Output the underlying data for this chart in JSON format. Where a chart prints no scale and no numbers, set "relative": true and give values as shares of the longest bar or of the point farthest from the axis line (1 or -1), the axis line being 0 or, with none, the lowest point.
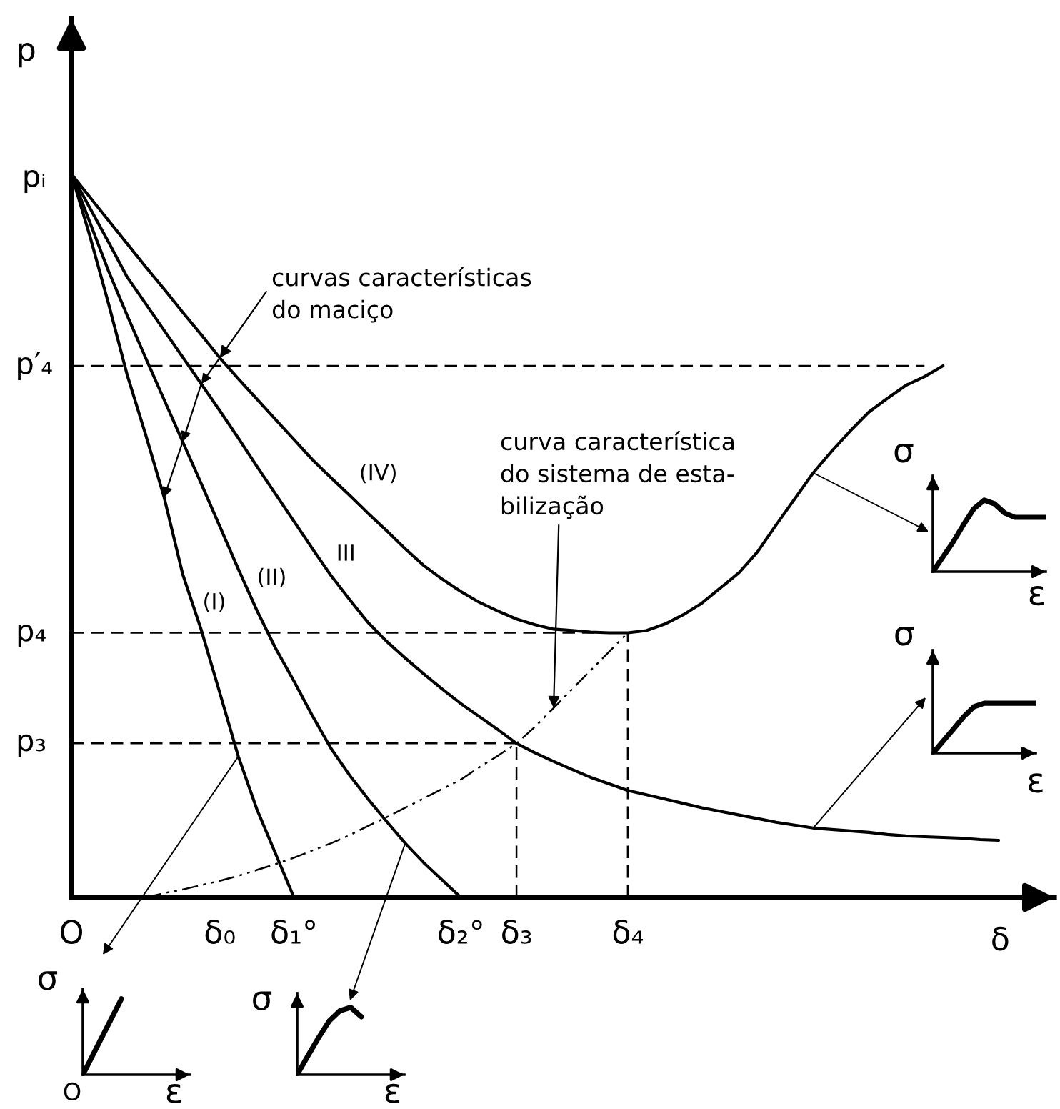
{
  "chart_data": [
    {
      "type": "line",
      "relative": true,
      "xlabel": "δ",
      "ylabel": "p",
      "categories": [
        "O",
        null,
        null,
        null,
        null,
        null,
        null,
        null,
        "δ₀",
        null,
        null,
        null,
        "δ₁°",
        null,
        null,
        null,
        null,
        null,
        null,
        null,
        null,
        "δ₂°",
        null,
        null,
        "δ₃",
        null,
        null,
        null,
        null,
        null,
        "δ₄",
        null,
        null,
        null,
        null,
        null,
        null,
        null,
        null,
        null,
        null,
        null,
        null,
        null,
        null,
        null,
        null,
        null,
        null,
        null,
        null
      ],
      "series": [
        {
          "name": "(I)",
          "color": "#000000",
          "values": [
            1,
            0.914,
            0.821,
            0.723,
            0.64,
            0.553,
            0.447,
            0.37,
            0.283,
            0.195,
            0.122,
            0.061,
            0,
            null,
            null,
            null,
            null,
            null,
            null,
            null,
            null,
            null,
            null,
            null,
            null,
            null,
            null,
            null,
            null,
            null,
            null,
            null,
            null,
            null,
            null,
            null,
            null,
            null,
            null,
            null,
            null,
            null,
            null,
            null,
            null,
            null,
            null,
            null,
            null,
            null,
            null
          ]
        },
        {
          "name": "(II)",
          "color": "#000000",
          "values": [
            1,
            0.933,
            0.866,
            0.805,
            0.746,
            0.688,
            0.63,
            0.572,
            0.513,
            0.454,
            0.397,
            0.345,
            0.299,
            0.251,
            0.206,
            0.169,
            0.136,
            0.105,
            0.075,
            0.048,
            0.024,
            0,
            null,
            null,
            null,
            null,
            null,
            null,
            null,
            null,
            null,
            null,
            null,
            null,
            null,
            null,
            null,
            null,
            null,
            null,
            null,
            null,
            null,
            null,
            null,
            null,
            null,
            null,
            null,
            null,
            null
          ]
        },
        {
          "name": "III",
          "color": "#000000",
          "values": [
            1,
            0.953,
            0.906,
            0.858,
            0.821,
            0.784,
            0.747,
            0.71,
            0.673,
            0.635,
            0.596,
            0.558,
            0.52,
            0.482,
            0.445,
            0.412,
            0.38,
            0.354,
            0.331,
            0.309,
            0.288,
            0.268,
            0.25,
            0.232,
            0.213,
            0.2,
            0.188,
            0.177,
            0.166,
            0.157,
            0.148,
            0.142,
            0.136,
            0.13,
            0.124,
            0.119,
            0.114,
            0.109,
            0.104,
            0.1,
            0.096,
            0.094,
            0.092,
            0.09,
            0.087,
            0.085,
            0.084,
            0.083,
            0.082,
            0.08,
            0.079
          ]
        },
        {
          "name": "(IV)",
          "color": "#000000",
          "values": [
            1,
            0.968,
            0.936,
            0.904,
            0.872,
            0.841,
            0.809,
            0.778,
            0.746,
            0.717,
            0.689,
            0.661,
            0.633,
            0.605,
            0.58,
            0.556,
            0.531,
            0.507,
            0.482,
            0.459,
            0.44,
            0.423,
            0.408,
            0.396,
            0.385,
            0.377,
            0.371,
            0.369,
            0.367,
            0.366,
            0.366,
            0.369,
            0.378,
            0.391,
            0.407,
            0.428,
            0.449,
            0.478,
            0.515,
            0.551,
            0.587,
            0.617,
            0.645,
            0.671,
            0.69,
            0.708,
            0.72,
            0.735,
            null,
            null,
            null
          ]
        },
        {
          "color": "#000000",
          "line_style": "dashdot",
          "values": [
            null,
            null,
            null,
            null,
            0,
            0.006,
            0.011,
            0.017,
            0.023,
            0.03,
            0.038,
            0.046,
            0.055,
            0.065,
            0.075,
            0.086,
            0.099,
            0.111,
            0.124,
            0.137,
            0.15,
            0.163,
            0.18,
            0.196,
            0.213,
            0.236,
            0.262,
            0.288,
            0.314,
            0.34,
            0.366,
            null,
            null,
            null,
            null,
            null,
            null,
            null,
            null,
            null,
            null,
            null,
            null,
            null,
            null,
            null,
            null,
            null,
            null,
            null,
            null
          ]
        },
        {
          "color": "#000000",
          "line_style": "dashed",
          "values": [
            0.735,
            0.735,
            0.735,
            0.735,
            0.735,
            0.735,
            0.735,
            0.735,
            0.735,
            0.735,
            0.735,
            0.735,
            0.735,
            0.735,
            0.735,
            0.735,
            0.735,
            0.735,
            0.735,
            0.735,
            0.735,
            0.735,
            0.735,
            0.735,
            0.735,
            0.735,
            0.735,
            0.735,
            0.735,
            0.735,
            0.735,
            0.735,
            0.735,
            0.735,
            0.735,
            0.735,
            0.735,
            0.735,
            0.735,
            0.735,
            0.735,
            0.735,
            0.735,
            0.735,
            0.735,
            0.735,
            0.735,
            null,
            null,
            null,
            null
          ]
        },
        {
          "color": "#000000",
          "line_style": "dashed",
          "values": [
            0.366,
            0.366,
            0.366,
            0.366,
            0.366,
            0.366,
            0.366,
            0.366,
            0.366,
            0.366,
            0.366,
            0.366,
            0.366,
            0.366,
            0.366,
            0.366,
            0.366,
            0.366,
            0.366,
            0.366,
            0.366,
            0.366,
            0.366,
            0.366,
            0.366,
            0.366,
            0.366,
            0.366,
            0.366,
            0.366,
            0.366,
            null,
            null,
            null,
            null,
            null,
            null,
            null,
            null,
            null,
            null,
            null,
            null,
            null,
            null,
            null,
            null,
            null,
            null,
            null,
            null
          ]
        },
        {
          "color": "#000000",
          "line_style": "dashed",
          "values": [
            0.213,
            0.213,
            0.213,
            0.213,
            0.213,
            0.213,
            0.213,
            0.213,
            0.213,
            0.213,
            0.213,
            0.213,
            0.213,
            0.213,
            0.213,
            0.213,
            0.213,
            0.213,
            0.213,
            0.213,
            0.213,
            0.213,
            0.213,
            0.213,
            0.213,
            null,
            null,
            null,
            null,
            null,
            null,
            null,
            null,
            null,
            null,
            null,
            null,
            null,
            null,
            null,
            null,
            null,
            null,
            null,
            null,
            null,
            null,
            null,
            null,
            null,
            null
          ]
        },
        {
          "color": "#000000",
          "line_style": "dashed",
          "x": [
            "δ₃",
            "δ₃"
          ],
          "values": [
            0,
            0.213
          ]
        },
        {
          "color": "#000000",
          "line_style": "dashed",
          "x": [
            "δ₄",
            "δ₄"
          ],
          "values": [
            0,
            0.366
          ]
        }
      ],
      "annotations": [
        "pᵢ",
        "p′₄",
        "p₄",
        "p₃",
        "curvas características\ndo maciço",
        "curva característica\ndo sistema de esta-\nbilização"
      ]
    },
    {
      "type": "line",
      "relative": true,
      "xlabel": "ε",
      "ylabel": "σ",
      "categories": [
        null,
        null
      ],
      "series": [
        {
          "color": "#000000",
          "values": [
            0,
            1
          ]
        }
      ],
      "annotations": [
        "O"
      ]
    },
    {
      "type": "line",
      "relative": true,
      "xlabel": "ε",
      "ylabel": "σ",
      "categories": [
        null,
        null,
        null,
        null,
        null,
        null,
        null
      ],
      "series": [
        {
          "color": "#000000",
          "values": [
            0,
            0.28,
            0.55,
            0.8,
            0.95,
            1,
            0.86
          ]
        }
      ]
    },
    {
      "type": "line",
      "relative": true,
      "xlabel": "ε",
      "ylabel": "σ",
      "categories": [
        null,
        null,
        null,
        null,
        null,
        null,
        null,
        null,
        null,
        null,
        null,
        null
      ],
      "series": [
        {
          "color": "#000000",
          "values": [
            0,
            0.21,
            0.42,
            0.66,
            0.88,
            1,
            0.95,
            0.82,
            0.76,
            0.76,
            0.76,
            0.76
          ]
        }
      ]
    },
    {
      "type": "line",
      "relative": true,
      "xlabel": "ε",
      "ylabel": "σ",
      "categories": [
        null,
        null,
        null,
        null,
        null,
        null,
        null,
        null,
        null,
        null,
        null
      ],
      "series": [
        {
          "color": "#000000",
          "values": [
            0,
            0.24,
            0.48,
            0.73,
            0.93,
            1,
            1,
            1,
            1,
            1,
            1
          ]
        }
      ]
    }
  ]
}
